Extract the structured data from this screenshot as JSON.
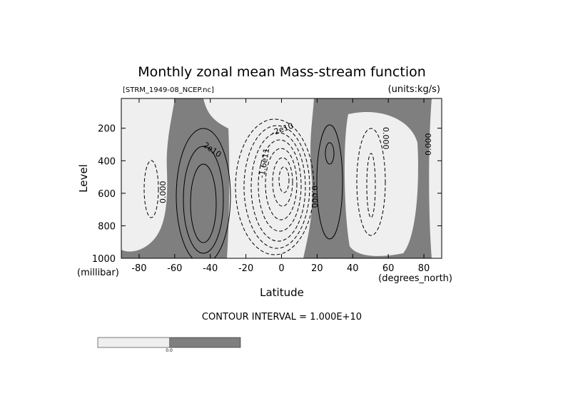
{
  "chart_data": {
    "type": "contour",
    "title": "Monthly zonal mean Mass-stream function",
    "dataset": "[STRM_1949-08_NCEP.nc]",
    "units": "(units:kg/s)",
    "x_label": "Latitude",
    "x_units": "(degrees_north)",
    "y_label": "Level",
    "y_units": "(millibar)",
    "xlim": [
      -90,
      90
    ],
    "xticks": [
      -80,
      -60,
      -40,
      -20,
      0,
      20,
      40,
      60,
      80
    ],
    "ylim": [
      1000,
      17
    ],
    "yticks": [
      200,
      400,
      600,
      800,
      1000
    ],
    "contour_interval": "CONTOUR INTERVAL = 1.000E+10",
    "colors": {
      "negative": "#efefef",
      "positive": "#7f7f7f"
    },
    "colorbar_label": "0.0",
    "annotations": [
      "0.000",
      "2e10",
      "-1.6e11",
      "-2e10",
      "0.000",
      "0.000",
      "0.000"
    ]
  }
}
